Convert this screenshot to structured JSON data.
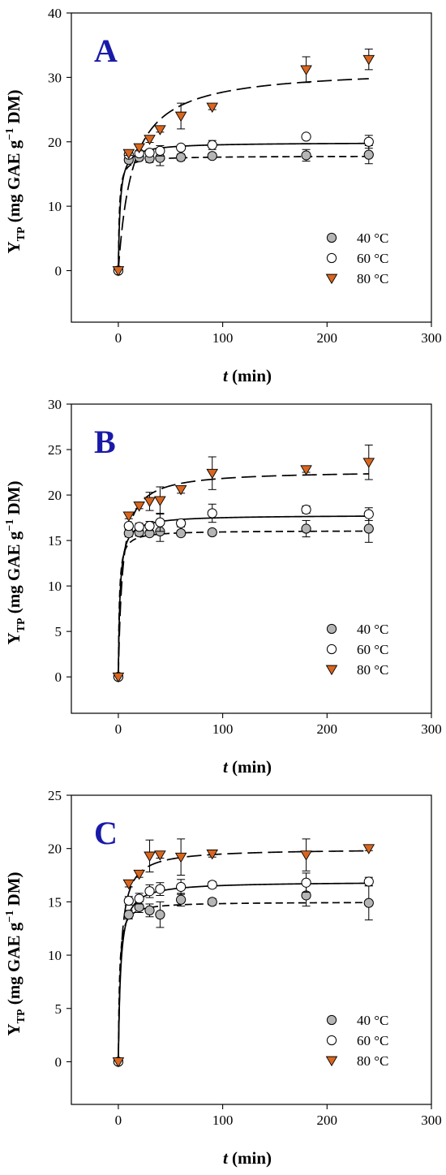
{
  "colors": {
    "series_40": "#b5b5b5",
    "series_60": "#ffffff",
    "series_80": "#d9661e",
    "panel_letter": "#1a1aa8",
    "axis": "#000000"
  },
  "chart_data": [
    {
      "type": "scatter",
      "panel_label": "A",
      "xlabel_var": "t",
      "xlabel_unit": " (min)",
      "ylabel_main": "Y",
      "ylabel_sub": "TP",
      "ylabel_rest1": " (mg GAE g",
      "ylabel_sup": "−1",
      "ylabel_rest2": " DM)",
      "xlim": [
        -45,
        300
      ],
      "ylim": [
        -8,
        40
      ],
      "xticks": [
        0,
        100,
        200,
        300
      ],
      "yticks": [
        0,
        10,
        20,
        30,
        40
      ],
      "legend_position": "lower-right",
      "series": [
        {
          "name": "40 °C",
          "marker": "circle",
          "line": "short-dash",
          "x": [
            0,
            10,
            20,
            30,
            40,
            60,
            90,
            180,
            240
          ],
          "y": [
            0,
            17.2,
            17.6,
            17.4,
            17.5,
            17.6,
            17.8,
            17.9,
            18.0
          ],
          "err": [
            0,
            0.5,
            0.5,
            0.6,
            1.2,
            0.5,
            0.4,
            0.9,
            1.4
          ],
          "fit": {
            "ymax": 17.8,
            "k": 1.0
          }
        },
        {
          "name": "60 °C",
          "marker": "open-circle",
          "line": "solid",
          "x": [
            0,
            10,
            20,
            30,
            40,
            60,
            90,
            180,
            240
          ],
          "y": [
            0,
            18.0,
            18.2,
            18.3,
            18.6,
            19.1,
            19.5,
            20.8,
            20.0
          ],
          "err": [
            0,
            0.4,
            0.4,
            0.5,
            0.8,
            0.4,
            0.7,
            0.3,
            1.0
          ],
          "fit": {
            "ymax": 19.9,
            "k": 0.55
          }
        },
        {
          "name": "80 °C",
          "marker": "triangle-down",
          "line": "long-dash",
          "x": [
            0,
            10,
            20,
            30,
            40,
            60,
            90,
            180,
            240
          ],
          "y": [
            0,
            18.2,
            19.1,
            20.4,
            21.9,
            24.0,
            25.4,
            31.2,
            32.8
          ],
          "err": [
            0,
            0.3,
            0.5,
            0.5,
            0.4,
            2.0,
            0.4,
            2.0,
            1.6
          ],
          "fit": {
            "ymax": 31.5,
            "k": 0.073
          }
        }
      ]
    },
    {
      "type": "scatter",
      "panel_label": "B",
      "xlabel_var": "t",
      "xlabel_unit": " (min)",
      "ylabel_main": "Y",
      "ylabel_sub": "TP",
      "ylabel_rest1": " (mg GAE g",
      "ylabel_sup": "−1",
      "ylabel_rest2": " DM)",
      "xlim": [
        -45,
        300
      ],
      "ylim": [
        -4,
        30
      ],
      "xticks": [
        0,
        100,
        200,
        300
      ],
      "yticks": [
        0,
        5,
        10,
        15,
        20,
        25,
        30
      ],
      "legend_position": "lower-right",
      "series": [
        {
          "name": "40 °C",
          "marker": "circle",
          "line": "short-dash",
          "x": [
            0,
            10,
            20,
            30,
            40,
            60,
            90,
            180,
            240
          ],
          "y": [
            0,
            15.8,
            15.9,
            15.8,
            16.0,
            15.8,
            15.9,
            16.3,
            16.3
          ],
          "err": [
            0,
            0.4,
            0.4,
            0.3,
            1.1,
            0.3,
            0.3,
            0.9,
            1.5
          ],
          "fit": {
            "ymax": 16.1,
            "k": 1.0
          }
        },
        {
          "name": "60 °C",
          "marker": "open-circle",
          "line": "solid",
          "x": [
            0,
            10,
            20,
            30,
            40,
            60,
            90,
            180,
            240
          ],
          "y": [
            0,
            16.6,
            16.5,
            16.6,
            17.0,
            16.9,
            18.0,
            18.4,
            17.9
          ],
          "err": [
            0,
            0.3,
            0.4,
            0.5,
            1.0,
            0.4,
            1.0,
            0.4,
            0.7
          ],
          "fit": {
            "ymax": 17.8,
            "k": 0.6
          }
        },
        {
          "name": "80 °C",
          "marker": "triangle-down",
          "line": "long-dash",
          "x": [
            0,
            10,
            20,
            30,
            40,
            60,
            90,
            180,
            240
          ],
          "y": [
            0,
            17.7,
            18.8,
            19.3,
            19.4,
            20.6,
            22.4,
            22.8,
            23.6
          ],
          "err": [
            0,
            0.3,
            0.3,
            1.0,
            1.5,
            0.4,
            1.8,
            0.3,
            1.9
          ],
          "fit": {
            "ymax": 22.7,
            "k": 0.25
          }
        }
      ]
    },
    {
      "type": "scatter",
      "panel_label": "C",
      "xlabel_var": "t",
      "xlabel_unit": " (min)",
      "ylabel_main": "Y",
      "ylabel_sub": "TP",
      "ylabel_rest1": " (mg GAE g",
      "ylabel_sup": "−1",
      "ylabel_rest2": " DM)",
      "xlim": [
        -45,
        300
      ],
      "ylim": [
        -4,
        25
      ],
      "xticks": [
        0,
        100,
        200,
        300
      ],
      "yticks": [
        0,
        5,
        10,
        15,
        20,
        25
      ],
      "legend_position": "lower-right",
      "series": [
        {
          "name": "40 °C",
          "marker": "circle",
          "line": "short-dash",
          "x": [
            0,
            10,
            20,
            30,
            40,
            60,
            90,
            180,
            240
          ],
          "y": [
            0,
            13.8,
            14.5,
            14.2,
            13.8,
            15.2,
            15.0,
            15.6,
            14.9
          ],
          "err": [
            0,
            0.4,
            0.5,
            0.6,
            1.2,
            0.6,
            0.3,
            1.0,
            1.6
          ],
          "fit": {
            "ymax": 15.0,
            "k": 0.9
          }
        },
        {
          "name": "60 °C",
          "marker": "open-circle",
          "line": "solid",
          "x": [
            0,
            10,
            20,
            30,
            40,
            60,
            90,
            180,
            240
          ],
          "y": [
            0,
            15.1,
            15.3,
            16.0,
            16.2,
            16.4,
            16.6,
            16.8,
            16.9
          ],
          "err": [
            0,
            0.4,
            0.5,
            0.6,
            0.6,
            0.7,
            0.3,
            0.9,
            0.4
          ],
          "fit": {
            "ymax": 16.9,
            "k": 0.45
          }
        },
        {
          "name": "80 °C",
          "marker": "triangle-down",
          "line": "long-dash",
          "x": [
            0,
            10,
            20,
            30,
            40,
            60,
            90,
            180,
            240
          ],
          "y": [
            0,
            16.7,
            17.6,
            19.3,
            19.4,
            19.2,
            19.5,
            19.4,
            20.0
          ],
          "err": [
            0,
            0.3,
            0.3,
            1.5,
            0.3,
            1.7,
            0.3,
            1.5,
            0.2
          ],
          "fit": {
            "ymax": 20.0,
            "k": 0.38
          }
        }
      ]
    }
  ]
}
